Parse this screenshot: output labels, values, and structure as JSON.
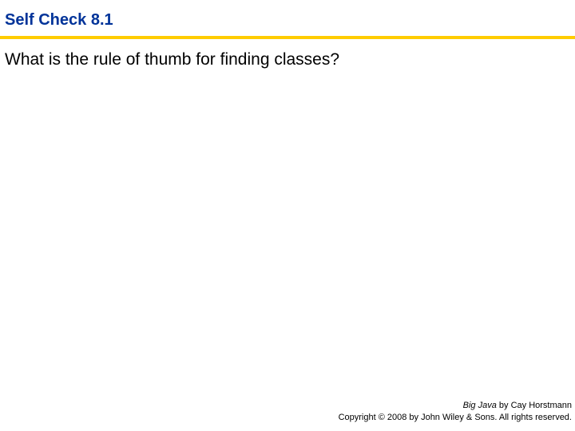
{
  "header": {
    "title": "Self Check 8.1",
    "title_color": "#003399",
    "rule_color": "#ffcc00"
  },
  "body": {
    "question": "What is the rule of thumb for finding classes?"
  },
  "footer": {
    "book_title": "Big Java",
    "byline": " by Cay Horstmann",
    "copyright": "Copyright © 2008 by John Wiley & Sons. All rights reserved."
  }
}
